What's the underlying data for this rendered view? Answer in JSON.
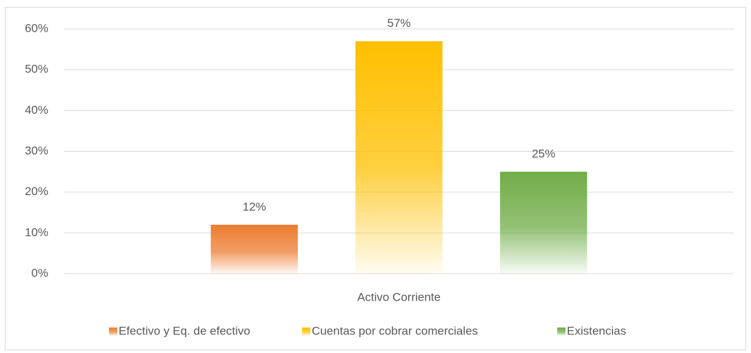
{
  "chart_data": {
    "type": "bar",
    "categories": [
      "Activo Corriente"
    ],
    "series": [
      {
        "name": "Efectivo y Eq. de efectivo",
        "color": "#ed7d31",
        "values": [
          12
        ],
        "value_labels": [
          "12%"
        ]
      },
      {
        "name": "Cuentas por cobrar comerciales",
        "color": "#ffc000",
        "values": [
          57
        ],
        "value_labels": [
          "57%"
        ]
      },
      {
        "name": "Existencias",
        "color": "#70ad47",
        "values": [
          25
        ],
        "value_labels": [
          "25%"
        ]
      }
    ],
    "ylim": [
      0,
      60
    ],
    "yticks": [
      {
        "value": 0,
        "label": "0%"
      },
      {
        "value": 10,
        "label": "10%"
      },
      {
        "value": 20,
        "label": "20%"
      },
      {
        "value": 30,
        "label": "30%"
      },
      {
        "value": 40,
        "label": "40%"
      },
      {
        "value": 50,
        "label": "50%"
      },
      {
        "value": 60,
        "label": "60%"
      }
    ],
    "grid": true,
    "legend": "bottom"
  }
}
